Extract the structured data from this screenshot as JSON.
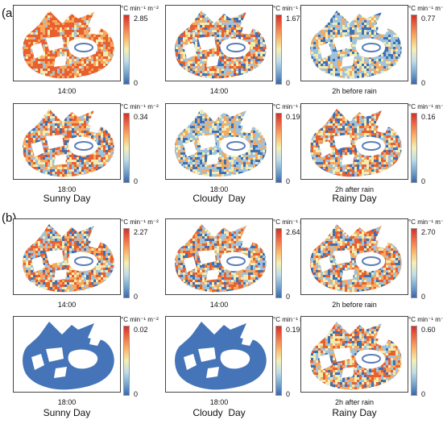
{
  "sections": [
    {
      "label": "(a)",
      "rows": [
        [
          {
            "time": "14:00",
            "max": "2.85",
            "min": "0",
            "mode": "hot"
          },
          {
            "time": "14:00",
            "max": "1.67",
            "min": "0",
            "mode": "mixed"
          },
          {
            "time": "2h before rain",
            "max": "0.77",
            "min": "0",
            "mode": "cool"
          }
        ],
        [
          {
            "time": "18:00",
            "max": "0.34",
            "min": "0",
            "mode": "mixed"
          },
          {
            "time": "18:00",
            "max": "0.19",
            "min": "0",
            "mode": "cool"
          },
          {
            "time": "2h after rain",
            "max": "0.16",
            "min": "0",
            "mode": "mixed"
          }
        ]
      ],
      "days": [
        "Sunny Day",
        "Cloudy  Day",
        "Rainy Day"
      ]
    },
    {
      "label": "(b)",
      "rows": [
        [
          {
            "time": "14:00",
            "max": "2.27",
            "min": "0",
            "mode": "mixed"
          },
          {
            "time": "14:00",
            "max": "2.64",
            "min": "0",
            "mode": "mixed"
          },
          {
            "time": "2h before rain",
            "max": "2.70",
            "min": "0",
            "mode": "mixed"
          }
        ],
        [
          {
            "time": "18:00",
            "max": "0.02",
            "min": "0",
            "mode": "solid"
          },
          {
            "time": "18:00",
            "max": "0.19",
            "min": "0",
            "mode": "solid"
          },
          {
            "time": "2h after rain",
            "max": "0.60",
            "min": "0",
            "mode": "mixed"
          }
        ]
      ],
      "days": [
        "Sunny Day",
        "Cloudy  Day",
        "Rainy Day"
      ]
    }
  ],
  "unit": "°C min⁻¹ m⁻²",
  "colors": {
    "hot": "#e8602f",
    "warm": "#f6a85f",
    "mid": "#f1ecb0",
    "cool": "#9dc3de",
    "cold": "#3f6fb4",
    "solid": "#4575b8"
  }
}
